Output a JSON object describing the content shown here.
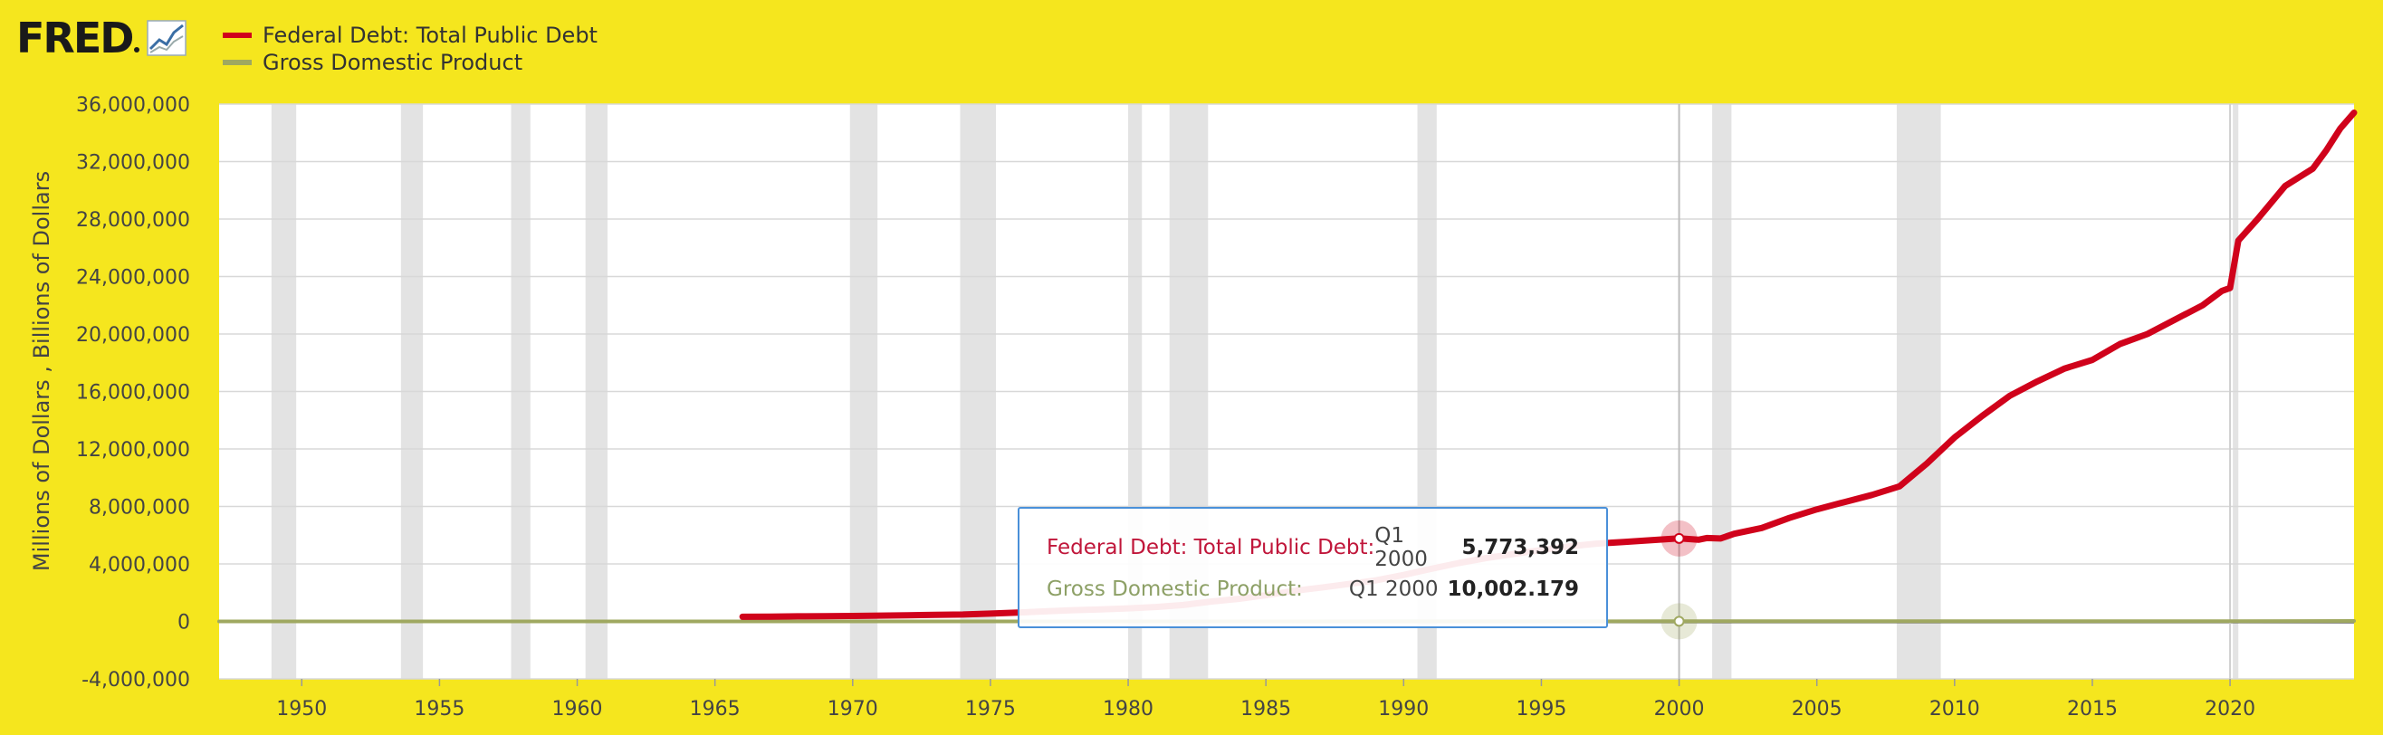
{
  "logo": {
    "text": "FRED"
  },
  "legend": [
    {
      "label": "Federal Debt: Total Public Debt",
      "color": "#d0021b"
    },
    {
      "label": "Gross Domestic Product",
      "color": "#9fa860"
    }
  ],
  "tooltip": {
    "rows": [
      {
        "name": "Federal Debt: Total Public Debt:",
        "date": "Q1 2000",
        "value": "5,773,392",
        "color": "#c0163a"
      },
      {
        "name": "Gross Domestic Product:",
        "date": "Q1 2000",
        "value": "10,002.179",
        "color": "#8da066"
      }
    ]
  },
  "chart_data": {
    "type": "line",
    "ylabel": "Millions of Dollars , Billions of Dollars",
    "xlim": [
      1947,
      2024.5
    ],
    "ylim": [
      -4000000,
      36000000
    ],
    "x_ticks": [
      1950,
      1955,
      1960,
      1965,
      1970,
      1975,
      1980,
      1985,
      1990,
      1995,
      2000,
      2005,
      2010,
      2015,
      2020
    ],
    "y_ticks": [
      {
        "value": -4000000,
        "label": "-4,000,000"
      },
      {
        "value": 0,
        "label": "0"
      },
      {
        "value": 4000000,
        "label": "4,000,000"
      },
      {
        "value": 8000000,
        "label": "8,000,000"
      },
      {
        "value": 12000000,
        "label": "12,000,000"
      },
      {
        "value": 16000000,
        "label": "16,000,000"
      },
      {
        "value": 20000000,
        "label": "20,000,000"
      },
      {
        "value": 24000000,
        "label": "24,000,000"
      },
      {
        "value": 28000000,
        "label": "28,000,000"
      },
      {
        "value": 32000000,
        "label": "32,000,000"
      },
      {
        "value": 36000000,
        "label": "36,000,000"
      }
    ],
    "recessions": [
      [
        1948.9,
        1949.8
      ],
      [
        1953.6,
        1954.4
      ],
      [
        1957.6,
        1958.3
      ],
      [
        1960.3,
        1961.1
      ],
      [
        1969.9,
        1970.9
      ],
      [
        1973.9,
        1975.2
      ],
      [
        1980.0,
        1980.5
      ],
      [
        1981.5,
        1982.9
      ],
      [
        1990.5,
        1991.2
      ],
      [
        2001.2,
        2001.9
      ],
      [
        2007.9,
        2009.5
      ],
      [
        2020.1,
        2020.3
      ]
    ],
    "highlight_x": 2000.0,
    "series": [
      {
        "name": "Federal Debt: Total Public Debt",
        "color": "#d0021b",
        "points": [
          [
            1966.0,
            320000
          ],
          [
            1967,
            330000
          ],
          [
            1968,
            350000
          ],
          [
            1969,
            360000
          ],
          [
            1970,
            380000
          ],
          [
            1971,
            400000
          ],
          [
            1972,
            430000
          ],
          [
            1973,
            460000
          ],
          [
            1974,
            480000
          ],
          [
            1975,
            540000
          ],
          [
            1976,
            620000
          ],
          [
            1977,
            700000
          ],
          [
            1978,
            780000
          ],
          [
            1979,
            830000
          ],
          [
            1980,
            910000
          ],
          [
            1981,
            1000000
          ],
          [
            1982,
            1140000
          ],
          [
            1983,
            1380000
          ],
          [
            1984,
            1570000
          ],
          [
            1985,
            1820000
          ],
          [
            1986,
            2120000
          ],
          [
            1987,
            2350000
          ],
          [
            1988,
            2600000
          ],
          [
            1989,
            2860000
          ],
          [
            1990,
            3230000
          ],
          [
            1991,
            3660000
          ],
          [
            1992,
            4060000
          ],
          [
            1993,
            4410000
          ],
          [
            1994,
            4690000
          ],
          [
            1995,
            4970000
          ],
          [
            1996,
            5220000
          ],
          [
            1997,
            5410000
          ],
          [
            1998,
            5530000
          ],
          [
            1999,
            5650000
          ],
          [
            2000,
            5773392
          ],
          [
            2000.7,
            5680000
          ],
          [
            2001,
            5800000
          ],
          [
            2001.5,
            5770000
          ],
          [
            2002,
            6100000
          ],
          [
            2003,
            6500000
          ],
          [
            2004,
            7200000
          ],
          [
            2005,
            7800000
          ],
          [
            2006,
            8300000
          ],
          [
            2007,
            8800000
          ],
          [
            2008,
            9400000
          ],
          [
            2009,
            11000000
          ],
          [
            2010,
            12800000
          ],
          [
            2011,
            14300000
          ],
          [
            2012,
            15700000
          ],
          [
            2013,
            16700000
          ],
          [
            2014,
            17600000
          ],
          [
            2015,
            18200000
          ],
          [
            2016,
            19300000
          ],
          [
            2017,
            20000000
          ],
          [
            2018,
            21000000
          ],
          [
            2019,
            22000000
          ],
          [
            2019.7,
            23000000
          ],
          [
            2020,
            23200000
          ],
          [
            2020.3,
            26500000
          ],
          [
            2021,
            28000000
          ],
          [
            2022,
            30300000
          ],
          [
            2023,
            31500000
          ],
          [
            2023.5,
            32800000
          ],
          [
            2024,
            34300000
          ],
          [
            2024.5,
            35400000
          ]
        ]
      },
      {
        "name": "Gross Domestic Product",
        "color": "#9fa860",
        "points": [
          [
            1947,
            243
          ],
          [
            1960,
            543
          ],
          [
            1970,
            1073
          ],
          [
            1980,
            2857
          ],
          [
            1990,
            5872
          ],
          [
            2000,
            10002.179
          ],
          [
            2010,
            15049
          ],
          [
            2020,
            21354
          ],
          [
            2024.5,
            28600
          ]
        ]
      }
    ]
  }
}
